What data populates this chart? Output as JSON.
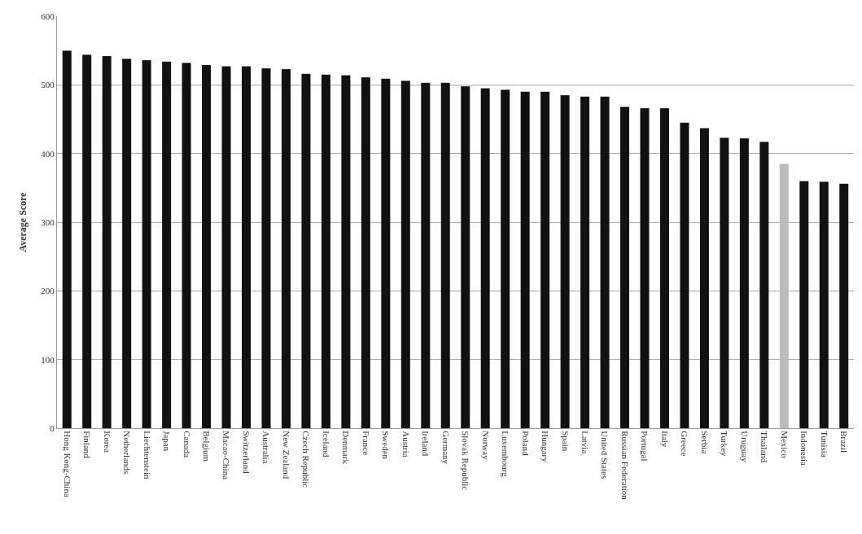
{
  "chart_data": {
    "type": "bar",
    "ylabel": "Average Score",
    "categories": [
      "Hong Kong-China",
      "Finland",
      "Korea",
      "Netherlands",
      "Liechtenstein",
      "Japan",
      "Canada",
      "Belgium",
      "Macao-China",
      "Switzerland",
      "Australia",
      "New Zealand",
      "Czech Republic",
      "Iceland",
      "Denmark",
      "France",
      "Sweden",
      "Austria",
      "Ireland",
      "Germany",
      "Slovak Republic",
      "Norway",
      "Luxembourg",
      "Poland",
      "Hungary",
      "Spain",
      "Latvia",
      "United States",
      "Russian Federation",
      "Portugal",
      "Italy",
      "Greece",
      "Serbia",
      "Turkey",
      "Uruguay",
      "Thailand",
      "Mexico",
      "Indonesia",
      "Tunisia",
      "Brazil"
    ],
    "values": [
      550,
      544,
      542,
      538,
      536,
      534,
      532,
      529,
      527,
      527,
      524,
      523,
      516,
      515,
      514,
      511,
      509,
      506,
      503,
      503,
      498,
      495,
      493,
      490,
      490,
      485,
      483,
      483,
      468,
      466,
      466,
      445,
      437,
      423,
      422,
      417,
      385,
      360,
      359,
      356
    ],
    "colors": [
      "#111111",
      "#111111",
      "#111111",
      "#111111",
      "#111111",
      "#111111",
      "#111111",
      "#111111",
      "#111111",
      "#111111",
      "#111111",
      "#111111",
      "#111111",
      "#111111",
      "#111111",
      "#111111",
      "#111111",
      "#111111",
      "#111111",
      "#111111",
      "#111111",
      "#111111",
      "#111111",
      "#111111",
      "#111111",
      "#111111",
      "#111111",
      "#111111",
      "#111111",
      "#111111",
      "#111111",
      "#111111",
      "#111111",
      "#111111",
      "#111111",
      "#111111",
      "#bbbbbb",
      "#111111",
      "#111111",
      "#111111"
    ],
    "ylim": [
      0,
      600
    ],
    "yticks": [
      0,
      100,
      200,
      300,
      400,
      500,
      600
    ],
    "grid": "y"
  }
}
